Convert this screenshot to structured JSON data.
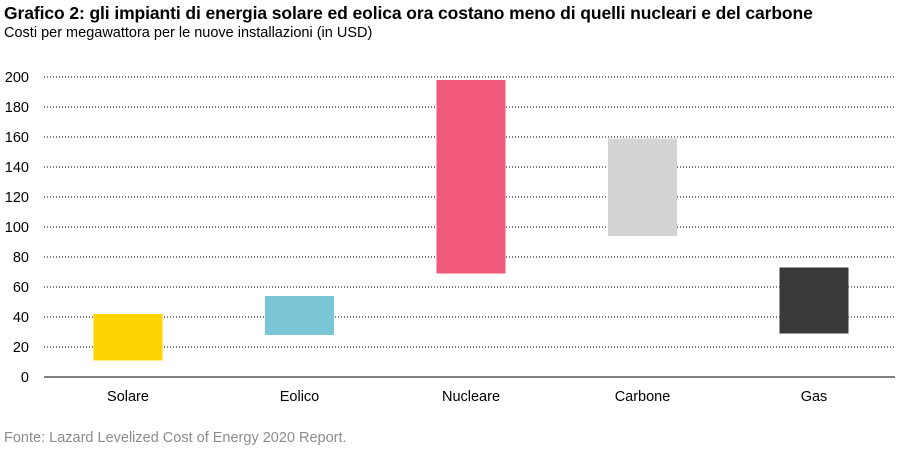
{
  "title": "Grafico 2: gli impianti di energia solare ed eolica ora costano meno di quelli nucleari e del carbone",
  "subtitle": "Costi per megawattora per le nuove installazioni (in USD)",
  "source": "Fonte: Lazard Levelized Cost of Energy 2020 Report.",
  "chart_data": {
    "type": "bar",
    "subtype": "floating-range",
    "categories": [
      "Solare",
      "Eolico",
      "Nucleare",
      "Carbone",
      "Gas"
    ],
    "ranges": [
      {
        "category": "Solare",
        "low": 11,
        "high": 42,
        "color": "#FFD500"
      },
      {
        "category": "Eolico",
        "low": 28,
        "high": 54,
        "color": "#7AC5D6"
      },
      {
        "category": "Nucleare",
        "low": 69,
        "high": 198,
        "color": "#F0587C"
      },
      {
        "category": "Carbone",
        "low": 94,
        "high": 159,
        "color": "#D3D3D3"
      },
      {
        "category": "Gas",
        "low": 29,
        "high": 73,
        "color": "#383A38"
      }
    ],
    "y_ticks": [
      "0",
      "20",
      "40",
      "60",
      "80",
      "100",
      "120",
      "140",
      "160",
      "180",
      "200"
    ],
    "ylim": [
      0,
      200
    ],
    "grid": true,
    "gridline_style": "dotted",
    "legend": false
  }
}
